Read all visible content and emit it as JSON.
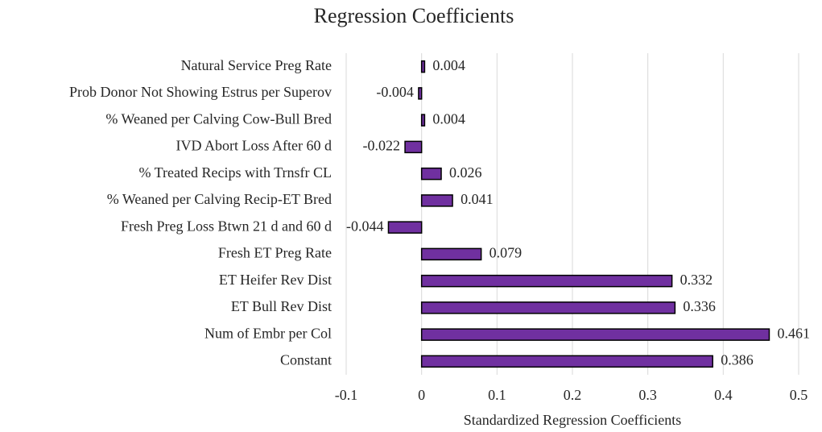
{
  "chart_data": {
    "type": "barh",
    "title": "Regression  Coefficients",
    "x_label": "Standardized Regression Coefficients",
    "categories": [
      "Natural Service Preg Rate",
      "Prob Donor Not Showing Estrus per Superov",
      "% Weaned per Calving Cow-Bull Bred",
      "IVD Abort Loss After 60 d",
      "% Treated Recips with Trnsfr CL",
      "% Weaned per Calving Recip-ET Bred",
      "Fresh Preg Loss Btwn 21 d and 60 d",
      "Fresh ET Preg Rate",
      "ET Heifer Rev Dist",
      "ET Bull Rev Dist",
      "Num of Embr per Col",
      "Constant"
    ],
    "values": [
      0.004,
      -0.004,
      0.004,
      -0.022,
      0.026,
      0.041,
      -0.044,
      0.079,
      0.332,
      0.336,
      0.461,
      0.386
    ],
    "color": "#7030a0",
    "xlim": [
      -0.1,
      0.5
    ],
    "xticks": [
      -0.1,
      0,
      0.1,
      0.2,
      0.3,
      0.4,
      0.5
    ],
    "grid": true
  }
}
